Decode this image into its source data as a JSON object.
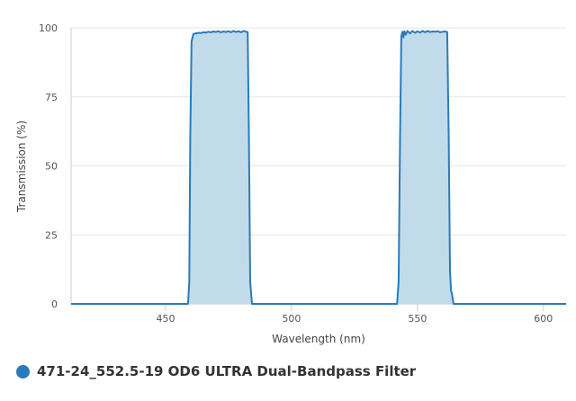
{
  "chart_data": {
    "type": "area",
    "xlabel": "Wavelength (nm)",
    "ylabel": "Transmission (%)",
    "xlim": [
      412.5,
      609
    ],
    "ylim": [
      0,
      100
    ],
    "xticks": [
      450,
      500,
      550,
      600
    ],
    "yticks": [
      0,
      25,
      50,
      75,
      100
    ],
    "grid": "horizontal",
    "legend_position": "bottom-left",
    "color": "#2b7bba",
    "fill_color": "#c2dbea",
    "series": [
      {
        "name": "471-24_552.5-19 OD6 ULTRA Dual-Bandpass Filter",
        "x": [
          412.5,
          458.9,
          459.4,
          459.8,
          460.3,
          461,
          462,
          463,
          464,
          465,
          466,
          467,
          468,
          469,
          470,
          471,
          472,
          473,
          474,
          475,
          476,
          477,
          478,
          479,
          480,
          481,
          482,
          482.6,
          483.1,
          483.6,
          484.3,
          485,
          541.9,
          542.5,
          543.1,
          543.6,
          544,
          544.4,
          544.8,
          545.3,
          546,
          547,
          548,
          549,
          550,
          551,
          552,
          553,
          554,
          555,
          556,
          557,
          558,
          559,
          560,
          561,
          561.8,
          562.4,
          562.9,
          563.3,
          563.8,
          564.3,
          609
        ],
        "y": [
          0,
          0,
          8,
          60,
          95,
          97.8,
          98,
          98.2,
          98.1,
          98.4,
          98.3,
          98.6,
          98.4,
          98.7,
          98.5,
          98.8,
          98.4,
          98.7,
          98.5,
          98.8,
          98.4,
          98.9,
          98.5,
          98.8,
          98.4,
          98.9,
          98.6,
          98.5,
          60,
          8,
          0,
          0,
          0,
          8,
          60,
          97,
          98.6,
          96.5,
          98.8,
          97.5,
          98.9,
          98,
          98.9,
          98.2,
          98.8,
          98.3,
          98.9,
          98.4,
          98.9,
          98.5,
          98.7,
          98.6,
          98.8,
          98.4,
          98.6,
          98.7,
          98.5,
          60,
          12,
          5,
          3,
          0,
          0
        ]
      }
    ]
  }
}
